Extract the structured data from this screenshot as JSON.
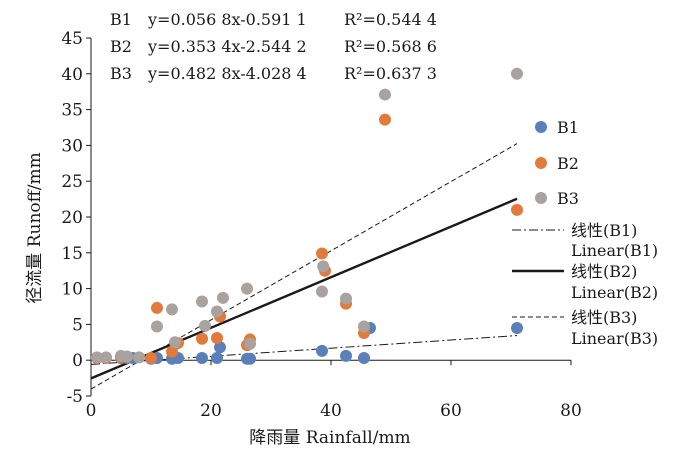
{
  "chart_data": {
    "type": "scatter",
    "xlabel": "降雨量 Rainfall/mm",
    "ylabel": "径流量 Runoff/mm",
    "xlim": [
      0,
      80
    ],
    "ylim": [
      -5,
      45
    ],
    "xticks": [
      "0",
      "20",
      "40",
      "60",
      "80"
    ],
    "yticks": [
      "-5",
      "0",
      "5",
      "10",
      "15",
      "20",
      "25",
      "30",
      "35",
      "40",
      "45"
    ],
    "equations": [
      {
        "label": "B1",
        "eq": "y=0.056 8x-0.591 1",
        "r2": "R²=0.544 4"
      },
      {
        "label": "B2",
        "eq": "y=0.353 4x-2.544 2",
        "r2": "R²=0.568 6"
      },
      {
        "label": "B3",
        "eq": "y=0.482 8x-4.028 4",
        "r2": "R²=0.637 3"
      }
    ],
    "series": [
      {
        "name": "B1",
        "color": "#5b7fb9",
        "points": [
          [
            1,
            0.3
          ],
          [
            2.5,
            0.3
          ],
          [
            5,
            0.3
          ],
          [
            6,
            0.3
          ],
          [
            7,
            0.3
          ],
          [
            10,
            0.2
          ],
          [
            11,
            0.3
          ],
          [
            13.5,
            0.2
          ],
          [
            14.5,
            0.3
          ],
          [
            18.5,
            0.3
          ],
          [
            21,
            0.3
          ],
          [
            21.5,
            1.8
          ],
          [
            26,
            0.2
          ],
          [
            26.5,
            0.2
          ],
          [
            38.5,
            1.3
          ],
          [
            42.5,
            0.6
          ],
          [
            45.5,
            0.3
          ],
          [
            46.5,
            4.5
          ],
          [
            71,
            4.5
          ]
        ]
      },
      {
        "name": "B2",
        "color": "#e07b3c",
        "points": [
          [
            1,
            0.3
          ],
          [
            2.5,
            0.3
          ],
          [
            5,
            0.4
          ],
          [
            6,
            0.5
          ],
          [
            10,
            0.3
          ],
          [
            11,
            7.3
          ],
          [
            13.5,
            1.2
          ],
          [
            14.5,
            2.4
          ],
          [
            18.5,
            3.0
          ],
          [
            21,
            3.1
          ],
          [
            21.5,
            6.1
          ],
          [
            26,
            2.1
          ],
          [
            26.5,
            2.9
          ],
          [
            38.5,
            14.9
          ],
          [
            39,
            12.5
          ],
          [
            42.5,
            7.9
          ],
          [
            45.5,
            3.8
          ],
          [
            49,
            33.6
          ],
          [
            71,
            21
          ]
        ]
      },
      {
        "name": "B3",
        "color": "#a9a29e",
        "points": [
          [
            1,
            0.4
          ],
          [
            2.5,
            0.4
          ],
          [
            5,
            0.6
          ],
          [
            6,
            0.5
          ],
          [
            8,
            0.4
          ],
          [
            11,
            4.7
          ],
          [
            13.5,
            7.1
          ],
          [
            14,
            2.5
          ],
          [
            18.5,
            8.2
          ],
          [
            19,
            4.8
          ],
          [
            21,
            6.8
          ],
          [
            22,
            8.7
          ],
          [
            26,
            10.0
          ],
          [
            26.5,
            2.3
          ],
          [
            38.5,
            9.6
          ],
          [
            38.7,
            13.1
          ],
          [
            42.5,
            8.6
          ],
          [
            45.5,
            4.7
          ],
          [
            49,
            37.1
          ],
          [
            71,
            40
          ]
        ]
      }
    ],
    "fits": [
      {
        "name": "B1",
        "slope": 0.0568,
        "intercept": -0.5911,
        "x_range": [
          0,
          71
        ],
        "style": "dashdot"
      },
      {
        "name": "B2",
        "slope": 0.3534,
        "intercept": -2.5442,
        "x_range": [
          0,
          71
        ],
        "style": "solid"
      },
      {
        "name": "B3",
        "slope": 0.4828,
        "intercept": -4.0284,
        "x_range": [
          0,
          71
        ],
        "style": "dashed"
      }
    ],
    "legend": {
      "position": "right",
      "markers": [
        "B1",
        "B2",
        "B3"
      ],
      "lines": [
        {
          "cn": "线性(B1)",
          "en": "Linear(B1)",
          "style": "dashdot"
        },
        {
          "cn": "线性(B2)",
          "en": "Linear(B2)",
          "style": "solid"
        },
        {
          "cn": "线性(B3)",
          "en": "Linear(B3)",
          "style": "dashed"
        }
      ]
    }
  }
}
